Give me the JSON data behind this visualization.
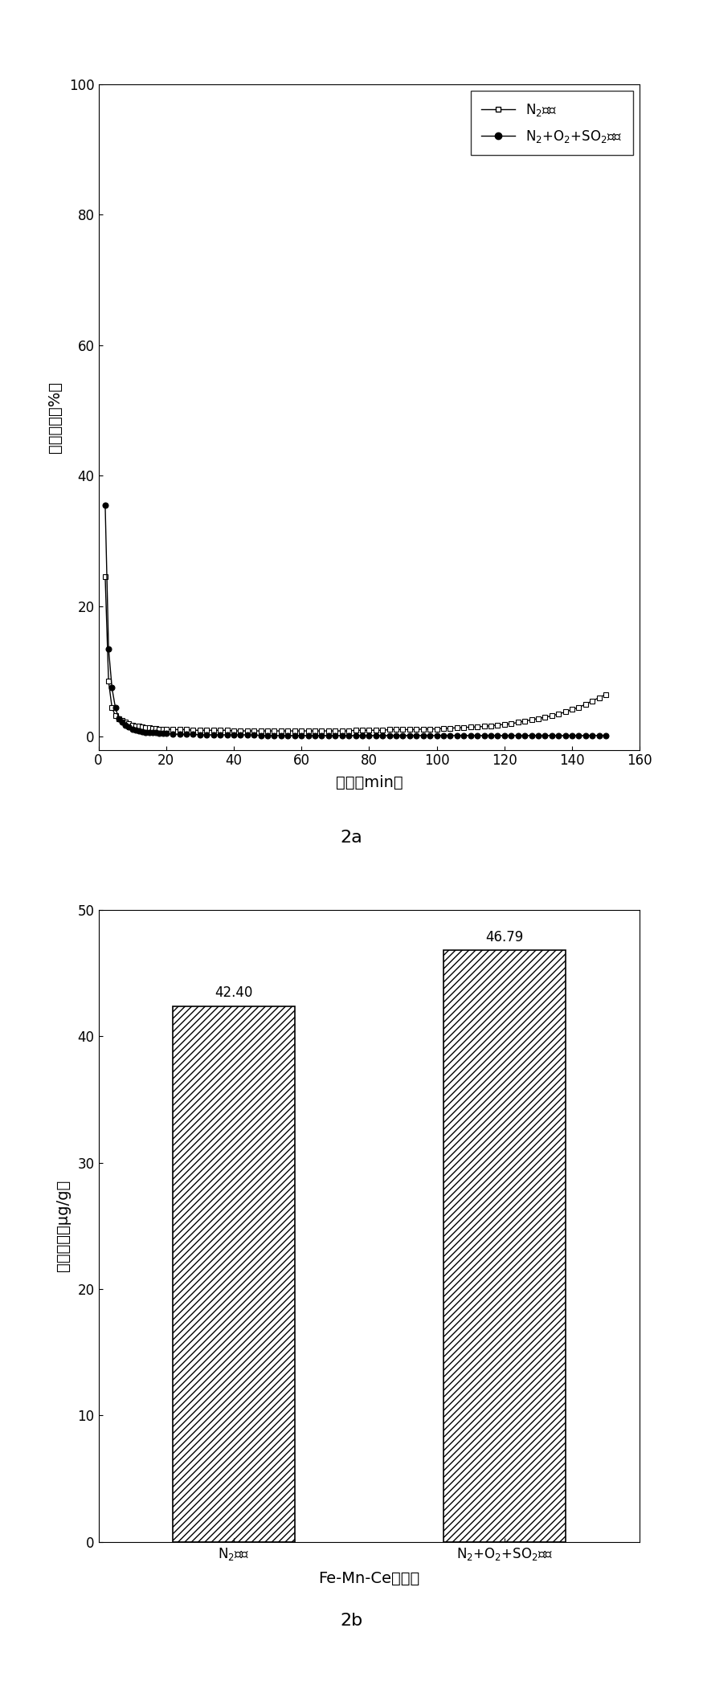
{
  "fig_width": 8.75,
  "fig_height": 20.98,
  "dpi": 100,
  "plot2a": {
    "xlabel": "时间（min）",
    "ylabel": "汞穿透率（%）",
    "xlim": [
      0,
      160
    ],
    "ylim": [
      -2,
      100
    ],
    "xticks": [
      0,
      20,
      40,
      60,
      80,
      100,
      120,
      140,
      160
    ],
    "yticks": [
      0,
      20,
      40,
      60,
      80,
      100
    ],
    "label_fontsize": 14,
    "tick_fontsize": 12,
    "label_caption": "2a",
    "series1_label": "N₂氛围",
    "series1_x": [
      2,
      3,
      4,
      5,
      6,
      7,
      8,
      9,
      10,
      11,
      12,
      13,
      14,
      15,
      16,
      17,
      18,
      19,
      20,
      22,
      24,
      26,
      28,
      30,
      32,
      34,
      36,
      38,
      40,
      42,
      44,
      46,
      48,
      50,
      52,
      54,
      56,
      58,
      60,
      62,
      64,
      66,
      68,
      70,
      72,
      74,
      76,
      78,
      80,
      82,
      84,
      86,
      88,
      90,
      92,
      94,
      96,
      98,
      100,
      102,
      104,
      106,
      108,
      110,
      112,
      114,
      116,
      118,
      120,
      122,
      124,
      126,
      128,
      130,
      132,
      134,
      136,
      138,
      140,
      142,
      144,
      146,
      148,
      150
    ],
    "series1_y": [
      24.5,
      8.5,
      4.5,
      3.2,
      2.8,
      2.5,
      2.2,
      2.0,
      1.8,
      1.7,
      1.6,
      1.5,
      1.4,
      1.4,
      1.3,
      1.3,
      1.2,
      1.2,
      1.2,
      1.1,
      1.1,
      1.1,
      1.0,
      1.0,
      1.0,
      1.0,
      1.0,
      1.0,
      0.9,
      0.9,
      0.9,
      0.9,
      0.9,
      0.9,
      0.9,
      0.9,
      0.9,
      0.9,
      0.9,
      0.9,
      0.9,
      0.9,
      0.9,
      0.9,
      0.9,
      0.9,
      1.0,
      1.0,
      1.0,
      1.0,
      1.0,
      1.1,
      1.1,
      1.1,
      1.1,
      1.1,
      1.2,
      1.2,
      1.2,
      1.3,
      1.3,
      1.4,
      1.4,
      1.5,
      1.5,
      1.6,
      1.7,
      1.8,
      1.9,
      2.0,
      2.2,
      2.4,
      2.6,
      2.8,
      3.0,
      3.2,
      3.5,
      3.8,
      4.2,
      4.5,
      5.0,
      5.5,
      6.0,
      6.5
    ],
    "series1_marker": "s",
    "series1_color": "black",
    "series2_label": "N₂+O₂+SO₂氛围",
    "series2_x": [
      2,
      3,
      4,
      5,
      6,
      7,
      8,
      9,
      10,
      11,
      12,
      13,
      14,
      15,
      16,
      17,
      18,
      19,
      20,
      22,
      24,
      26,
      28,
      30,
      32,
      34,
      36,
      38,
      40,
      42,
      44,
      46,
      48,
      50,
      52,
      54,
      56,
      58,
      60,
      62,
      64,
      66,
      68,
      70,
      72,
      74,
      76,
      78,
      80,
      82,
      84,
      86,
      88,
      90,
      92,
      94,
      96,
      98,
      100,
      102,
      104,
      106,
      108,
      110,
      112,
      114,
      116,
      118,
      120,
      122,
      124,
      126,
      128,
      130,
      132,
      134,
      136,
      138,
      140,
      142,
      144,
      146,
      148,
      150
    ],
    "series2_y": [
      35.5,
      13.5,
      7.5,
      4.5,
      2.8,
      2.2,
      1.8,
      1.5,
      1.2,
      1.0,
      0.9,
      0.8,
      0.7,
      0.7,
      0.6,
      0.6,
      0.5,
      0.5,
      0.5,
      0.4,
      0.4,
      0.4,
      0.4,
      0.3,
      0.3,
      0.3,
      0.3,
      0.3,
      0.3,
      0.3,
      0.3,
      0.3,
      0.2,
      0.2,
      0.2,
      0.2,
      0.2,
      0.2,
      0.2,
      0.2,
      0.2,
      0.2,
      0.2,
      0.2,
      0.2,
      0.2,
      0.2,
      0.2,
      0.2,
      0.2,
      0.2,
      0.2,
      0.2,
      0.2,
      0.2,
      0.2,
      0.2,
      0.2,
      0.2,
      0.2,
      0.2,
      0.2,
      0.2,
      0.2,
      0.2,
      0.2,
      0.2,
      0.2,
      0.2,
      0.2,
      0.2,
      0.2,
      0.2,
      0.2,
      0.2,
      0.2,
      0.2,
      0.2,
      0.2,
      0.2,
      0.2,
      0.2,
      0.2,
      0.2
    ],
    "series2_marker": "o",
    "series2_color": "black",
    "legend_fontsize": 12,
    "legend_loc": "upper right"
  },
  "plot2b": {
    "categories": [
      "N₂氛围",
      "N₂+O₂+SO₂氛围"
    ],
    "values": [
      42.4,
      46.79
    ],
    "xlabel": "Fe-Mn-Ce吸附剂",
    "ylabel": "汞吸附量（μg/g）",
    "ylim": [
      0,
      50
    ],
    "yticks": [
      0,
      10,
      20,
      30,
      40,
      50
    ],
    "bar_color": "white",
    "bar_edgecolor": "black",
    "hatch": "////",
    "label_fontsize": 14,
    "tick_fontsize": 12,
    "value_fontsize": 12,
    "label_caption": "2b",
    "bar_width": 0.45,
    "x_positions": [
      0.5,
      1.5
    ]
  }
}
